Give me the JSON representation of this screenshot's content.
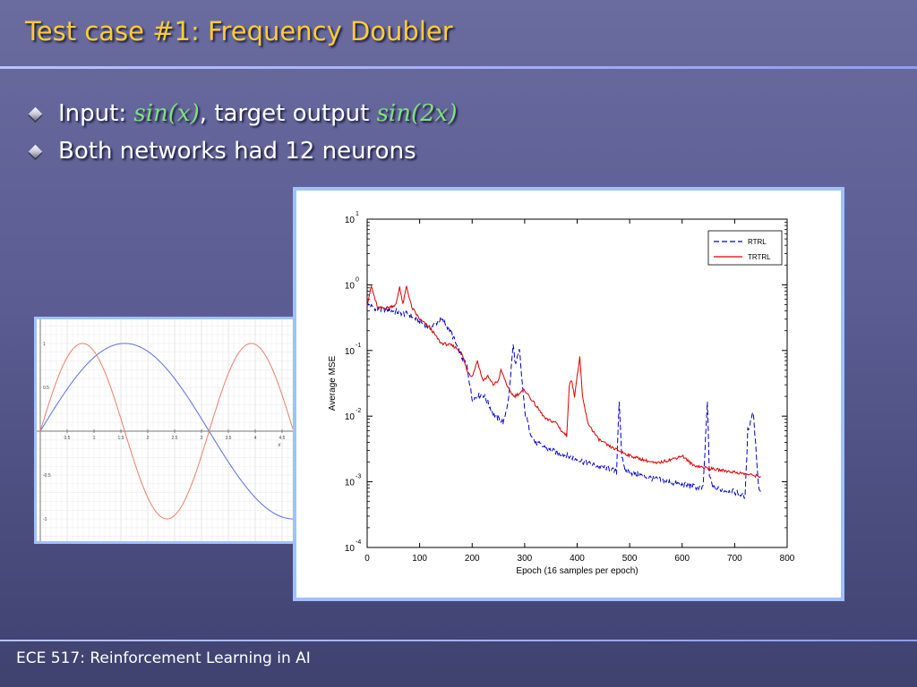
{
  "slide": {
    "title": "Test case #1: Frequency Doubler",
    "bullets": [
      {
        "prefix": "Input: ",
        "math1": "sin(x)",
        "middle": ", target output ",
        "math2": "sin(2x)"
      },
      {
        "text": "Both networks had 12 neurons"
      }
    ],
    "footer": "ECE 517: Reinforcement Learning in AI",
    "colors": {
      "title": "#ffcc33",
      "math": "#7fe07f",
      "panel_border": "#9fc2ff",
      "background": "#5a5c92"
    }
  },
  "chart_data": [
    {
      "type": "line",
      "title": "",
      "xlabel": "x",
      "ylabel": "",
      "xlim": [
        0,
        4.7
      ],
      "ylim": [
        -1.05,
        1.05
      ],
      "x_ticks": [
        "0.5",
        "1",
        "1.5",
        "2",
        "2.5",
        "3",
        "3.5",
        "4",
        "4.5"
      ],
      "y_ticks": [
        "1",
        "0.5",
        "-0.5",
        "-1"
      ],
      "grid": true,
      "series": [
        {
          "function": "sin(x)",
          "color": "#5b6fe0"
        },
        {
          "function": "sin(2x)",
          "color": "#e8806c"
        }
      ]
    },
    {
      "type": "line",
      "title": "",
      "xlabel": "Epoch (16 samples per epoch)",
      "ylabel": "Average MSE",
      "xlim": [
        0,
        800
      ],
      "ylim_log10": [
        -4,
        1
      ],
      "y_scale": "log",
      "x_ticks": [
        "0",
        "100",
        "200",
        "300",
        "400",
        "500",
        "600",
        "700",
        "800"
      ],
      "y_ticks": [
        {
          "base": "10",
          "exp": "1"
        },
        {
          "base": "10",
          "exp": "0"
        },
        {
          "base": "10",
          "exp": "-1"
        },
        {
          "base": "10",
          "exp": "-2"
        },
        {
          "base": "10",
          "exp": "-3"
        },
        {
          "base": "10",
          "exp": "-4"
        }
      ],
      "legend_position": "top-right",
      "series": [
        {
          "name": "RTRL",
          "color": "#0000cc",
          "dash": "dashed",
          "x": [
            0,
            20,
            50,
            80,
            100,
            120,
            140,
            150,
            160,
            170,
            180,
            190,
            200,
            210,
            220,
            230,
            240,
            250,
            260,
            270,
            278,
            283,
            290,
            300,
            310,
            320,
            350,
            380,
            400,
            430,
            460,
            475,
            480,
            485,
            490,
            500,
            550,
            600,
            640,
            648,
            652,
            660,
            700,
            720,
            725,
            735,
            740,
            745,
            750
          ],
          "y": [
            0.5,
            0.42,
            0.4,
            0.35,
            0.28,
            0.22,
            0.3,
            0.25,
            0.19,
            0.12,
            0.08,
            0.06,
            0.018,
            0.02,
            0.022,
            0.016,
            0.011,
            0.009,
            0.008,
            0.02,
            0.12,
            0.06,
            0.1,
            0.012,
            0.006,
            0.004,
            0.003,
            0.0025,
            0.0022,
            0.0018,
            0.0016,
            0.0014,
            0.018,
            0.0025,
            0.0015,
            0.0014,
            0.0011,
            0.0009,
            0.0008,
            0.017,
            0.0012,
            0.0008,
            0.0007,
            0.0006,
            0.006,
            0.012,
            0.004,
            0.0009,
            0.0007
          ]
        },
        {
          "name": "TRTRL",
          "color": "#dd0000",
          "dash": "solid",
          "x": [
            0,
            8,
            20,
            40,
            55,
            62,
            68,
            75,
            85,
            100,
            120,
            140,
            160,
            170,
            180,
            190,
            200,
            210,
            220,
            230,
            240,
            250,
            255,
            260,
            270,
            280,
            300,
            320,
            340,
            360,
            370,
            380,
            385,
            390,
            395,
            400,
            405,
            410,
            420,
            440,
            460,
            500,
            550,
            580,
            600,
            620,
            650,
            700,
            750
          ],
          "y": [
            0.5,
            0.95,
            0.44,
            0.45,
            0.5,
            0.95,
            0.5,
            0.95,
            0.45,
            0.3,
            0.22,
            0.13,
            0.12,
            0.11,
            0.09,
            0.05,
            0.04,
            0.07,
            0.035,
            0.04,
            0.03,
            0.035,
            0.05,
            0.04,
            0.025,
            0.02,
            0.025,
            0.015,
            0.009,
            0.008,
            0.006,
            0.005,
            0.03,
            0.035,
            0.02,
            0.04,
            0.08,
            0.02,
            0.008,
            0.0045,
            0.0035,
            0.0025,
            0.0019,
            0.0022,
            0.0025,
            0.0018,
            0.0016,
            0.0014,
            0.0012
          ]
        }
      ]
    }
  ]
}
